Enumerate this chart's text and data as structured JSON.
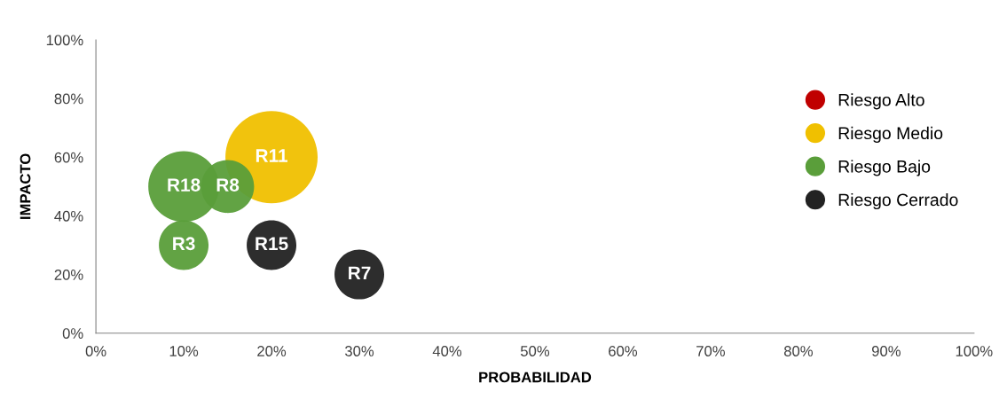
{
  "chart_data": {
    "type": "bubble",
    "xlabel": "PROBABILIDAD",
    "ylabel": "IMPACTO",
    "xlim": [
      0,
      1
    ],
    "ylim": [
      0,
      1
    ],
    "xticks": [
      {
        "value": 0,
        "label": "0%"
      },
      {
        "value": 0.1,
        "label": "10%"
      },
      {
        "value": 0.2,
        "label": "20%"
      },
      {
        "value": 0.3,
        "label": "30%"
      },
      {
        "value": 0.4,
        "label": "40%"
      },
      {
        "value": 0.5,
        "label": "50%"
      },
      {
        "value": 0.6,
        "label": "60%"
      },
      {
        "value": 0.7,
        "label": "70%"
      },
      {
        "value": 0.8,
        "label": "80%"
      },
      {
        "value": 0.9,
        "label": "90%"
      },
      {
        "value": 1,
        "label": "100%"
      }
    ],
    "yticks": [
      {
        "value": 0,
        "label": "0%"
      },
      {
        "value": 0.2,
        "label": "20%"
      },
      {
        "value": 0.4,
        "label": "40%"
      },
      {
        "value": 0.6,
        "label": "60%"
      },
      {
        "value": 0.8,
        "label": "80%"
      },
      {
        "value": 1,
        "label": "100%"
      }
    ],
    "grid": false,
    "legend": "right",
    "marker": "circle",
    "series": [
      {
        "name": "Riesgo Alto",
        "color": "#c00000"
      },
      {
        "name": "Riesgo Medio",
        "color": "#f0c000",
        "x": [
          0.2
        ],
        "values": [
          0.6
        ],
        "sizes": [
          1
        ]
      },
      {
        "name": "Riesgo Bajo",
        "color": "#5a9e3a",
        "x": [
          0.1,
          0.15,
          0.1
        ],
        "values": [
          0.5,
          0.5,
          0.3
        ],
        "sizes": [
          0.59,
          0.33,
          0.29
        ]
      },
      {
        "name": "Riesgo Cerrado",
        "color": "#222222",
        "x": [
          0.2,
          0.3
        ],
        "values": [
          0.3,
          0.2
        ],
        "sizes": [
          0.29,
          0.29
        ]
      }
    ],
    "annotations": [
      {
        "text": "R11",
        "x": 0.2,
        "y": 0.6
      },
      {
        "text": "R18",
        "x": 0.1,
        "y": 0.5
      },
      {
        "text": "R8",
        "x": 0.15,
        "y": 0.5
      },
      {
        "text": "R3",
        "x": 0.1,
        "y": 0.3
      },
      {
        "text": "R15",
        "x": 0.2,
        "y": 0.3
      },
      {
        "text": "R7",
        "x": 0.3,
        "y": 0.2
      }
    ]
  }
}
